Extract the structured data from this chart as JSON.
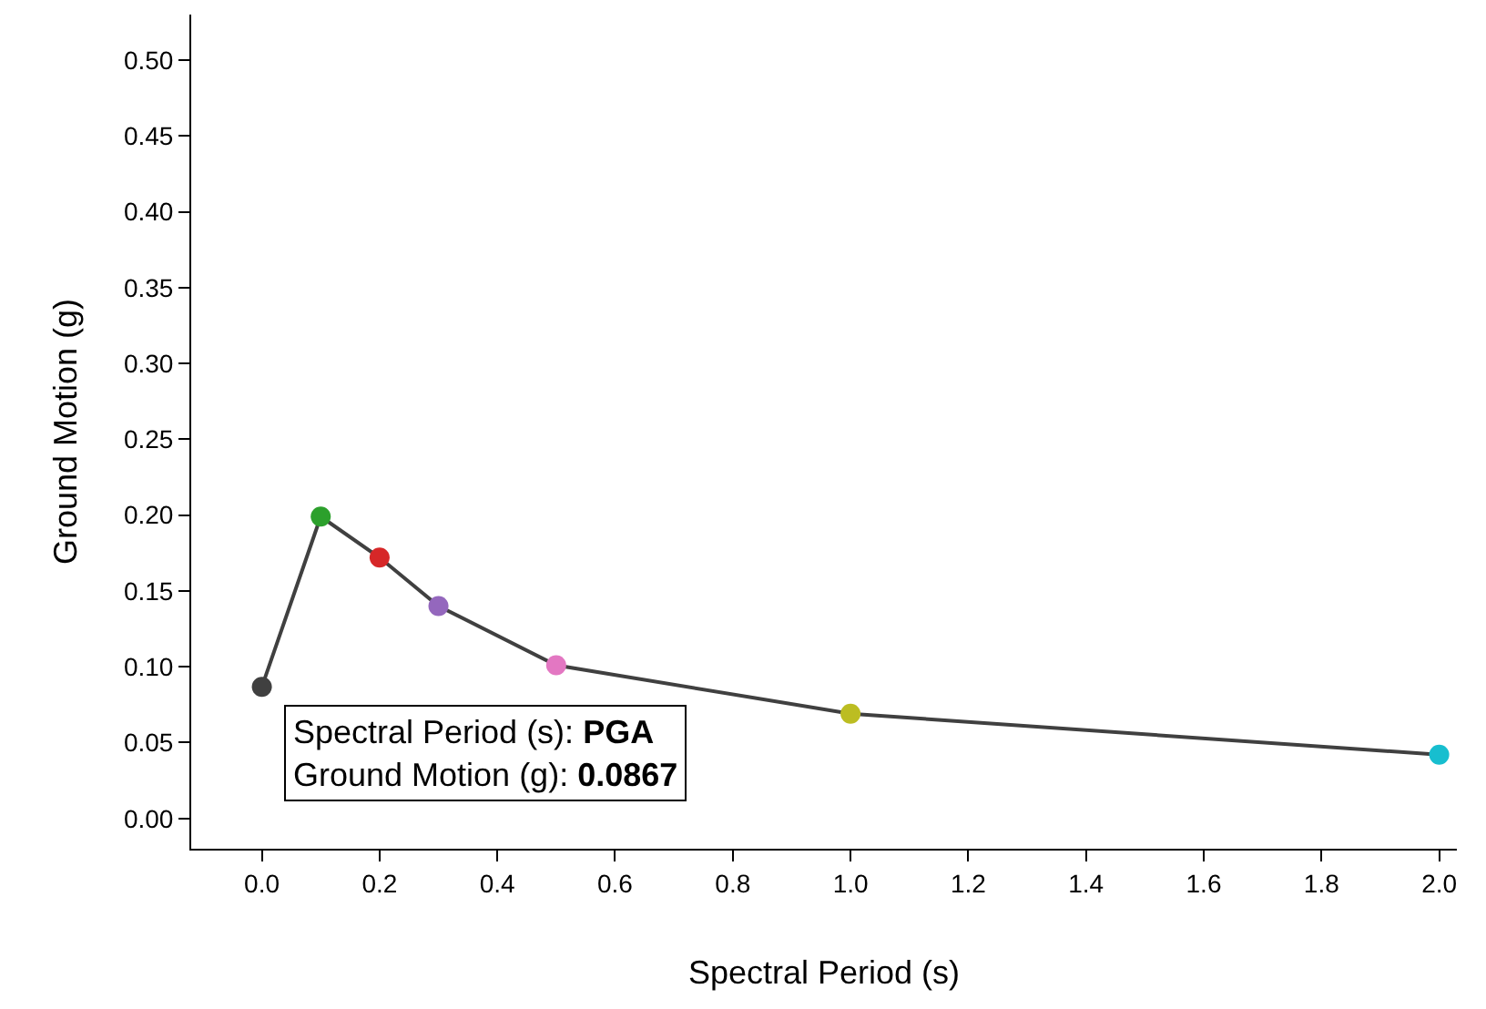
{
  "chart_data": {
    "type": "line",
    "xlabel": "Spectral Period (s)",
    "ylabel": "Ground Motion (g)",
    "x": [
      0.0,
      0.1,
      0.2,
      0.3,
      0.5,
      1.0,
      2.0
    ],
    "series": [
      {
        "color": "#404040",
        "colors": [
          "#404040",
          "#2ca02c",
          "#d62728",
          "#9467bd",
          "#e377c2",
          "#bcbd22",
          "#17becf"
        ],
        "values": [
          0.0867,
          0.199,
          0.172,
          0.14,
          0.101,
          0.069,
          0.042
        ]
      }
    ],
    "xlim": [
      -0.12,
      2.03
    ],
    "ylim": [
      -0.02,
      0.53
    ],
    "xticks": [
      {
        "value": 0,
        "label": "0.0"
      },
      {
        "value": 0.2,
        "label": "0.2"
      },
      {
        "value": 0.4,
        "label": "0.4"
      },
      {
        "value": 0.6,
        "label": "0.6"
      },
      {
        "value": 0.8,
        "label": "0.8"
      },
      {
        "value": 1.0,
        "label": "1.0"
      },
      {
        "value": 1.2,
        "label": "1.2"
      },
      {
        "value": 1.4,
        "label": "1.4"
      },
      {
        "value": 1.6,
        "label": "1.6"
      },
      {
        "value": 1.8,
        "label": "1.8"
      },
      {
        "value": 2.0,
        "label": "2.0"
      }
    ],
    "yticks": [
      {
        "value": 0,
        "label": "0.00"
      },
      {
        "value": 0.05,
        "label": "0.05"
      },
      {
        "value": 0.1,
        "label": "0.10"
      },
      {
        "value": 0.15,
        "label": "0.15"
      },
      {
        "value": 0.2,
        "label": "0.20"
      },
      {
        "value": 0.25,
        "label": "0.25"
      },
      {
        "value": 0.3,
        "label": "0.30"
      },
      {
        "value": 0.35,
        "label": "0.35"
      },
      {
        "value": 0.4,
        "label": "0.40"
      },
      {
        "value": 0.45,
        "label": "0.45"
      },
      {
        "value": 0.5,
        "label": "0.50"
      }
    ],
    "marker": "circle",
    "line_style": "solid",
    "annotations": [
      {
        "text": "Spectral Period (s): PGA\nGround Motion (g): 0.0867",
        "x": 0.0,
        "y": 0.0867
      }
    ]
  }
}
